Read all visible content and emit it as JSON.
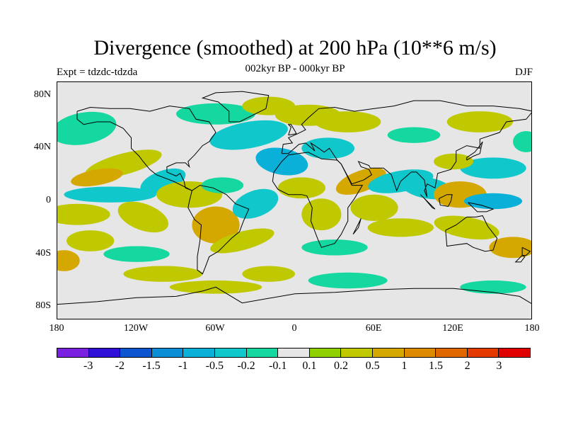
{
  "header": {
    "title": "Divergence (smoothed) at 200 hPa (10**6 m/s)",
    "subtitle": "002kyr BP - 000kyr BP",
    "experiment": "Expt = tdzdc-tdzda",
    "season": "DJF"
  },
  "map": {
    "projection": "cylindrical equidistant",
    "lat_range": [
      -90,
      90
    ],
    "lon_range": [
      -180,
      180
    ],
    "lat_ticks": [
      "80N",
      "40N",
      "0",
      "40S",
      "80S"
    ],
    "lon_ticks": [
      "180",
      "120W",
      "60W",
      "0",
      "60E",
      "120E",
      "180"
    ],
    "neutral_color": "#e6e6e6"
  },
  "colorbar": {
    "colors": [
      "#7a20e0",
      "#2e10d8",
      "#0d55d0",
      "#0c8ed6",
      "#0ab0d8",
      "#10c8cc",
      "#14d8a0",
      "#e6e6e6",
      "#8fd000",
      "#c0c800",
      "#d4a800",
      "#dc8a00",
      "#e06600",
      "#e43a00",
      "#e00000"
    ],
    "labels": [
      "-3",
      "-2",
      "-1.5",
      "-1",
      "-0.5",
      "-0.2",
      "-0.1",
      "0.1",
      "0.2",
      "0.5",
      "1",
      "1.5",
      "2",
      "3"
    ]
  }
}
